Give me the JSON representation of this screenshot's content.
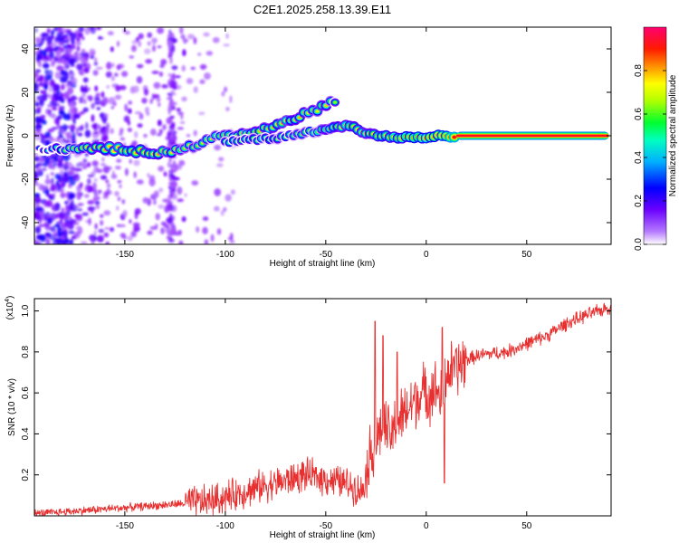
{
  "figure": {
    "title": "C2E1.2025.258.13.39.E11",
    "colors": {
      "snr_line": "#e83030",
      "frame": "#000000",
      "background": "#ffffff"
    }
  },
  "chart_data": [
    {
      "type": "heatmap",
      "title": "C2E1.2025.258.13.39.E11",
      "xlabel": "Height of straight line (km)",
      "ylabel": "Frequency (Hz)",
      "xlim": [
        -195,
        92
      ],
      "ylim": [
        -50,
        50
      ],
      "xticks": [
        -150,
        -100,
        -50,
        0,
        50
      ],
      "yticks": [
        -40,
        -20,
        0,
        20,
        40
      ],
      "colorbar": {
        "label": "Normalized spectral amplitude",
        "range": [
          0,
          1
        ],
        "ticks": [
          0.0,
          0.2,
          0.4,
          0.6,
          0.8
        ],
        "colormap": [
          "#ffffff",
          "#7a00ff",
          "#0000ff",
          "#00e0ff",
          "#00ff40",
          "#ffff00",
          "#ff8000",
          "#ff0000",
          "#ff00a0"
        ]
      },
      "ridge": {
        "description_points": [
          {
            "x": -195,
            "y": -6,
            "amp": 0.2
          },
          {
            "x": -175,
            "y": -6,
            "amp": 0.55
          },
          {
            "x": -155,
            "y": -6,
            "amp": 0.6
          },
          {
            "x": -135,
            "y": -8,
            "amp": 0.6
          },
          {
            "x": -120,
            "y": -6,
            "amp": 0.5
          },
          {
            "x": -105,
            "y": -1,
            "amp": 0.5
          },
          {
            "x": -90,
            "y": 1,
            "amp": 0.55
          },
          {
            "x": -75,
            "y": 5,
            "amp": 0.6
          },
          {
            "x": -60,
            "y": 10,
            "amp": 0.55
          },
          {
            "x": -50,
            "y": 14,
            "amp": 0.55
          },
          {
            "x": -45,
            "y": 16,
            "amp": 0.45
          }
        ],
        "lower_branch": [
          {
            "x": -100,
            "y": -3,
            "amp": 0.45
          },
          {
            "x": -75,
            "y": -1,
            "amp": 0.45
          },
          {
            "x": -55,
            "y": 2,
            "amp": 0.5
          },
          {
            "x": -40,
            "y": 5,
            "amp": 0.6
          },
          {
            "x": -30,
            "y": 1,
            "amp": 0.6
          },
          {
            "x": -15,
            "y": -1,
            "amp": 0.65
          },
          {
            "x": 0,
            "y": -1,
            "amp": 0.7
          },
          {
            "x": 10,
            "y": 0,
            "amp": 0.75
          },
          {
            "x": 15,
            "y": 0,
            "amp": 0.8
          },
          {
            "x": 90,
            "y": 0,
            "amp": 0.85
          }
        ]
      }
    },
    {
      "type": "line",
      "xlabel": "Height of straight line (km)",
      "ylabel": "SNR (10 * v/v)",
      "scale_note": "(x10",
      "scale_exp": "4",
      "scale_close": ")",
      "xlim": [
        -195,
        92
      ],
      "ylim": [
        0,
        1.06
      ],
      "xticks": [
        -150,
        -100,
        -50,
        0,
        50
      ],
      "yticks": [
        0.2,
        0.4,
        0.6,
        0.8,
        1.0
      ],
      "series": [
        {
          "name": "SNR",
          "x": [
            -195,
            -180,
            -165,
            -150,
            -135,
            -120,
            -110,
            -100,
            -90,
            -80,
            -70,
            -60,
            -50,
            -40,
            -32,
            -28,
            -25,
            -22,
            -18,
            -15,
            -10,
            -5,
            0,
            5,
            8,
            10,
            15,
            20,
            25,
            30,
            40,
            50,
            60,
            70,
            80,
            92
          ],
          "y": [
            0.01,
            0.02,
            0.03,
            0.04,
            0.05,
            0.06,
            0.07,
            0.09,
            0.12,
            0.15,
            0.17,
            0.2,
            0.18,
            0.16,
            0.12,
            0.3,
            0.35,
            0.45,
            0.38,
            0.45,
            0.5,
            0.58,
            0.6,
            0.62,
            0.55,
            0.7,
            0.72,
            0.76,
            0.78,
            0.79,
            0.8,
            0.84,
            0.88,
            0.94,
            0.98,
            1.02
          ],
          "spikes": [
            {
              "x": -25.5,
              "y": 0.95
            },
            {
              "x": -21.5,
              "y": 0.88
            },
            {
              "x": -14.5,
              "y": 0.8
            },
            {
              "x": 8,
              "y": 0.92
            },
            {
              "x": 9,
              "y": 0.16
            }
          ]
        }
      ]
    }
  ]
}
